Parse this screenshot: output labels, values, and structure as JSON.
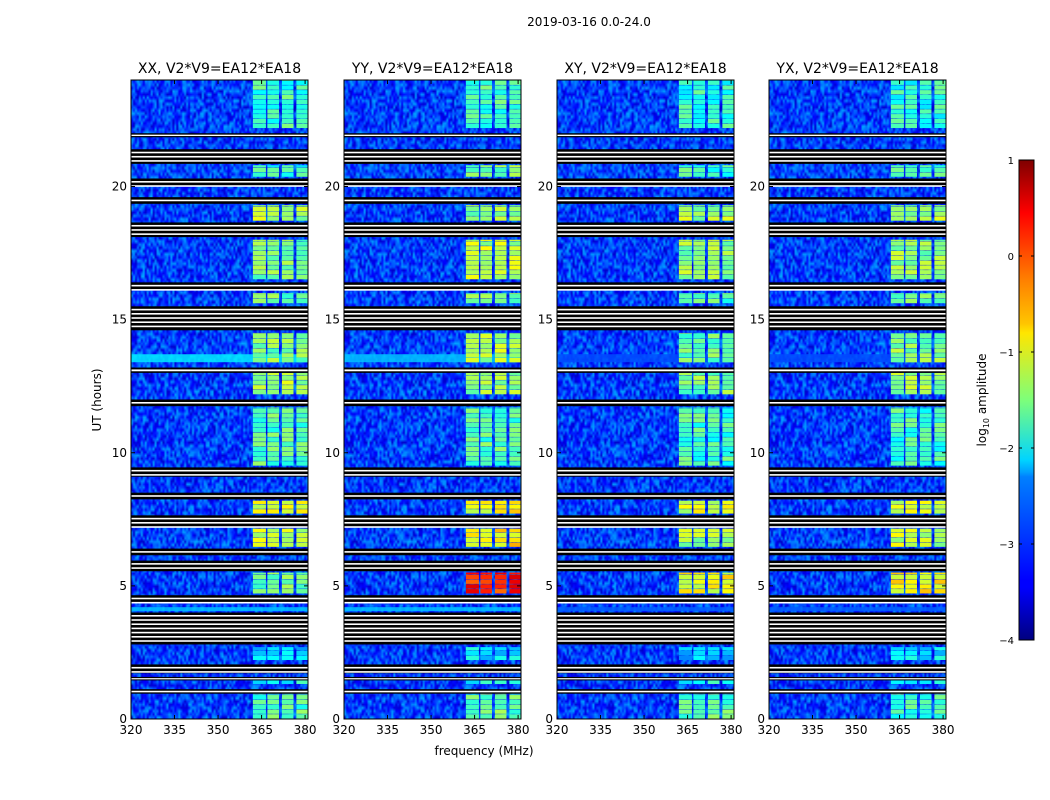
{
  "chart_data": {
    "type": "heatmap",
    "title": "2019-03-16 0.0-24.0",
    "xlabel": "frequency (MHz)",
    "ylabel": "UT (hours)",
    "xlim": [
      320,
      381
    ],
    "ylim": [
      0,
      24
    ],
    "x_ticks": [
      320,
      335,
      350,
      365,
      380
    ],
    "y_ticks": [
      0,
      5,
      10,
      15,
      20
    ],
    "colormap": "jet",
    "colorbar": {
      "label": "log10 amplitude",
      "label_base": "log",
      "label_sub": "10",
      "label_rest": " amplitude",
      "range": [
        -4,
        1
      ],
      "ticks": [
        -4,
        -3,
        -2,
        -1,
        0,
        1
      ],
      "tick_labels": [
        "−4",
        "−3",
        "−2",
        "−1",
        "0",
        "1"
      ]
    },
    "panels": [
      {
        "title": "XX, V2*V9=EA12*EA18",
        "polarization": "XX"
      },
      {
        "title": "YY, V2*V9=EA12*EA18",
        "polarization": "YY"
      },
      {
        "title": "XY, V2*V9=EA12*EA18",
        "polarization": "XY"
      },
      {
        "title": "YX, V2*V9=EA12*EA18",
        "polarization": "YX"
      }
    ],
    "rfi_freq_band_mhz": [
      362,
      381
    ],
    "rfi_channels_mhz": [
      [
        362,
        366.5
      ],
      [
        367,
        371
      ],
      [
        372,
        376
      ],
      [
        377,
        381
      ]
    ],
    "background_level": -3.1,
    "flagged_hours": [
      [
        0.95,
        1.12
      ],
      [
        1.45,
        1.58
      ],
      [
        1.72,
        2.05
      ],
      [
        2.8,
        4.0
      ],
      [
        4.35,
        4.65
      ],
      [
        5.55,
        5.95
      ],
      [
        6.15,
        6.4
      ],
      [
        7.2,
        7.65
      ],
      [
        8.25,
        8.5
      ],
      [
        9.1,
        9.45
      ],
      [
        11.75,
        12.0
      ],
      [
        13.0,
        13.2
      ],
      [
        14.6,
        15.5
      ],
      [
        16.1,
        16.4
      ],
      [
        18.1,
        18.65
      ],
      [
        19.35,
        19.6
      ],
      [
        20.0,
        20.3
      ],
      [
        20.85,
        21.4
      ],
      [
        21.85,
        22.0
      ]
    ],
    "rfi_segments": [
      {
        "hours": [
          0.0,
          0.95
        ],
        "xx": -1.7,
        "yy": -1.6,
        "xy": -1.7,
        "yx": -1.8
      },
      {
        "hours": [
          1.12,
          1.45
        ],
        "xx": -2.0,
        "yy": -2.0,
        "xy": -2.1,
        "yx": -2.1
      },
      {
        "hours": [
          2.2,
          2.7
        ],
        "xx": -2.3,
        "yy": -2.2,
        "xy": -2.4,
        "yx": -2.2
      },
      {
        "hours": [
          4.7,
          5.5
        ],
        "xx": -1.6,
        "yy": 0.2,
        "xy": -0.9,
        "yx": -0.8
      },
      {
        "hours": [
          6.45,
          7.15
        ],
        "xx": -1.2,
        "yy": -0.8,
        "xy": -1.3,
        "yx": -1.2
      },
      {
        "hours": [
          7.7,
          8.2
        ],
        "xx": -1.0,
        "yy": -0.9,
        "xy": -1.1,
        "yx": -1.0
      },
      {
        "hours": [
          9.5,
          11.7
        ],
        "xx": -1.7,
        "yy": -1.7,
        "xy": -1.8,
        "yx": -1.8
      },
      {
        "hours": [
          12.0,
          13.0
        ],
        "xx": -1.3,
        "yy": -1.4,
        "xy": -1.5,
        "yx": -1.4
      },
      {
        "hours": [
          13.2,
          14.5
        ],
        "xx": -1.5,
        "yy": -1.3,
        "xy": -1.6,
        "yx": -1.5
      },
      {
        "hours": [
          15.6,
          16.0
        ],
        "xx": -1.6,
        "yy": -1.6,
        "xy": -1.7,
        "yx": -1.6
      },
      {
        "hours": [
          16.5,
          18.0
        ],
        "xx": -1.5,
        "yy": -1.2,
        "xy": -1.4,
        "yx": -1.4
      },
      {
        "hours": [
          18.7,
          19.3
        ],
        "xx": -1.3,
        "yy": -1.4,
        "xy": -1.3,
        "yx": -1.3
      },
      {
        "hours": [
          20.35,
          20.8
        ],
        "xx": -1.9,
        "yy": -1.5,
        "xy": -1.8,
        "yx": -1.7
      },
      {
        "hours": [
          22.0,
          24.0
        ],
        "xx": -1.8,
        "yy": -1.8,
        "xy": -1.9,
        "yx": -1.9
      }
    ],
    "broadband_rows": [
      {
        "hours": [
          18.2,
          18.45
        ],
        "xx": -2.0,
        "yy": -2.0,
        "xy": -3.0,
        "yx": -3.0
      },
      {
        "hours": [
          13.4,
          13.7
        ],
        "xx": -2.2,
        "yy": -2.4,
        "xy": -3.0,
        "yx": -3.0
      },
      {
        "hours": [
          4.05,
          4.2
        ],
        "xx": -2.4,
        "yy": -2.4,
        "xy": -2.9,
        "yx": -2.9
      }
    ]
  }
}
